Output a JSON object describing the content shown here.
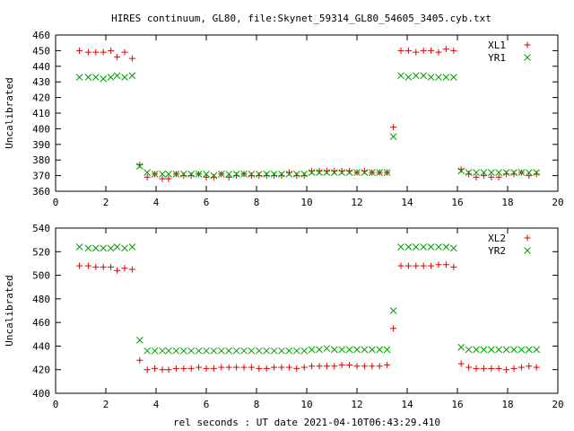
{
  "title": "HIRES continuum, GL80, file:Skynet_59314_GL80_54605_3405.cyb.txt",
  "colors": {
    "series_red": "#e00000",
    "series_green": "#00a000"
  },
  "chart_data": [
    {
      "type": "scatter",
      "ylabel": "Uncalibrated",
      "xlabel": "",
      "xlim": [
        0,
        20
      ],
      "ylim": [
        360,
        460
      ],
      "xticks": [
        0,
        2,
        4,
        6,
        8,
        10,
        12,
        14,
        16,
        18,
        20
      ],
      "yticks": [
        360,
        370,
        380,
        390,
        400,
        410,
        420,
        430,
        440,
        450,
        460
      ],
      "legend_position": "top-right",
      "series": [
        {
          "name": "XL1",
          "marker": "plus",
          "color": "#e00000",
          "x": [
            0.95,
            1.3,
            1.6,
            1.9,
            2.2,
            2.45,
            2.75,
            3.05,
            3.35,
            3.65,
            3.95,
            4.25,
            4.5,
            4.8,
            5.1,
            5.4,
            5.7,
            6.0,
            6.3,
            6.6,
            6.9,
            7.2,
            7.5,
            7.8,
            8.1,
            8.4,
            8.7,
            9.0,
            9.3,
            9.6,
            9.9,
            10.2,
            10.5,
            10.8,
            11.1,
            11.4,
            11.7,
            12.0,
            12.3,
            12.6,
            12.9,
            13.2,
            13.45,
            13.75,
            14.05,
            14.35,
            14.65,
            14.95,
            15.25,
            15.55,
            15.85,
            16.15,
            16.45,
            16.75,
            17.05,
            17.35,
            17.65,
            17.95,
            18.25,
            18.55,
            18.85,
            19.15
          ],
          "y": [
            450,
            449,
            449,
            449,
            450,
            446,
            449,
            445,
            377,
            369,
            371,
            368,
            368,
            371,
            370,
            370,
            371,
            369,
            369,
            371,
            369,
            370,
            371,
            370,
            370,
            370,
            370,
            370,
            372,
            370,
            370,
            373,
            373,
            373,
            373,
            373,
            373,
            372,
            373,
            372,
            372,
            372,
            401,
            450,
            450,
            449,
            450,
            450,
            449,
            451,
            450,
            374,
            371,
            369,
            370,
            369,
            369,
            371,
            371,
            372,
            370,
            371
          ]
        },
        {
          "name": "YR1",
          "marker": "cross",
          "color": "#00a000",
          "x": [
            0.95,
            1.3,
            1.6,
            1.9,
            2.2,
            2.45,
            2.75,
            3.05,
            3.35,
            3.65,
            3.95,
            4.25,
            4.5,
            4.8,
            5.1,
            5.4,
            5.7,
            6.0,
            6.3,
            6.6,
            6.9,
            7.2,
            7.5,
            7.8,
            8.1,
            8.4,
            8.7,
            9.0,
            9.3,
            9.6,
            9.9,
            10.2,
            10.5,
            10.8,
            11.1,
            11.4,
            11.7,
            12.0,
            12.3,
            12.6,
            12.9,
            13.2,
            13.45,
            13.75,
            14.05,
            14.35,
            14.65,
            14.95,
            15.25,
            15.55,
            15.85,
            16.15,
            16.45,
            16.75,
            17.05,
            17.35,
            17.65,
            17.95,
            18.25,
            18.55,
            18.85,
            19.15
          ],
          "y": [
            433,
            433,
            433,
            432,
            433,
            434,
            433,
            434,
            376,
            372,
            371,
            371,
            371,
            371,
            371,
            371,
            371,
            371,
            370,
            371,
            371,
            371,
            371,
            371,
            371,
            371,
            371,
            371,
            371,
            371,
            371,
            372,
            372,
            372,
            372,
            372,
            372,
            372,
            372,
            372,
            372,
            372,
            395,
            434,
            433,
            434,
            434,
            433,
            433,
            433,
            433,
            373,
            372,
            372,
            372,
            372,
            372,
            372,
            372,
            372,
            372,
            372
          ]
        }
      ]
    },
    {
      "type": "scatter",
      "ylabel": "Uncalibrated",
      "xlabel": "rel seconds : UT date 2021-04-10T06:43:29.410",
      "xlim": [
        0,
        20
      ],
      "ylim": [
        400,
        540
      ],
      "xticks": [
        0,
        2,
        4,
        6,
        8,
        10,
        12,
        14,
        16,
        18,
        20
      ],
      "yticks": [
        400,
        420,
        440,
        460,
        480,
        500,
        520,
        540
      ],
      "legend_position": "top-right",
      "series": [
        {
          "name": "XL2",
          "marker": "plus",
          "color": "#e00000",
          "x": [
            0.95,
            1.3,
            1.6,
            1.9,
            2.2,
            2.45,
            2.75,
            3.05,
            3.35,
            3.65,
            3.95,
            4.25,
            4.5,
            4.8,
            5.1,
            5.4,
            5.7,
            6.0,
            6.3,
            6.6,
            6.9,
            7.2,
            7.5,
            7.8,
            8.1,
            8.4,
            8.7,
            9.0,
            9.3,
            9.6,
            9.9,
            10.2,
            10.5,
            10.8,
            11.1,
            11.4,
            11.7,
            12.0,
            12.3,
            12.6,
            12.9,
            13.2,
            13.45,
            13.75,
            14.05,
            14.35,
            14.65,
            14.95,
            15.25,
            15.55,
            15.85,
            16.15,
            16.45,
            16.75,
            17.05,
            17.35,
            17.65,
            17.95,
            18.25,
            18.55,
            18.85,
            19.15
          ],
          "y": [
            508,
            508,
            507,
            507,
            507,
            504,
            506,
            505,
            428,
            420,
            421,
            420,
            420,
            421,
            421,
            421,
            422,
            421,
            421,
            422,
            422,
            422,
            422,
            422,
            421,
            421,
            422,
            422,
            422,
            421,
            422,
            423,
            423,
            423,
            423,
            424,
            424,
            423,
            423,
            423,
            423,
            424,
            455,
            508,
            508,
            508,
            508,
            508,
            509,
            509,
            507,
            425,
            422,
            421,
            421,
            421,
            421,
            420,
            421,
            422,
            423,
            422
          ]
        },
        {
          "name": "YR2",
          "marker": "cross",
          "color": "#00a000",
          "x": [
            0.95,
            1.3,
            1.6,
            1.9,
            2.2,
            2.45,
            2.75,
            3.05,
            3.35,
            3.65,
            3.95,
            4.25,
            4.5,
            4.8,
            5.1,
            5.4,
            5.7,
            6.0,
            6.3,
            6.6,
            6.9,
            7.2,
            7.5,
            7.8,
            8.1,
            8.4,
            8.7,
            9.0,
            9.3,
            9.6,
            9.9,
            10.2,
            10.5,
            10.8,
            11.1,
            11.4,
            11.7,
            12.0,
            12.3,
            12.6,
            12.9,
            13.2,
            13.45,
            13.75,
            14.05,
            14.35,
            14.65,
            14.95,
            15.25,
            15.55,
            15.85,
            16.15,
            16.45,
            16.75,
            17.05,
            17.35,
            17.65,
            17.95,
            18.25,
            18.55,
            18.85,
            19.15
          ],
          "y": [
            524,
            523,
            523,
            523,
            523,
            524,
            523,
            524,
            445,
            436,
            436,
            436,
            436,
            436,
            436,
            436,
            436,
            436,
            436,
            436,
            436,
            436,
            436,
            436,
            436,
            436,
            436,
            436,
            436,
            436,
            436,
            437,
            437,
            438,
            437,
            437,
            437,
            437,
            437,
            437,
            437,
            437,
            470,
            524,
            524,
            524,
            524,
            524,
            524,
            524,
            523,
            439,
            437,
            437,
            437,
            437,
            437,
            437,
            437,
            437,
            437,
            437
          ]
        }
      ]
    }
  ]
}
